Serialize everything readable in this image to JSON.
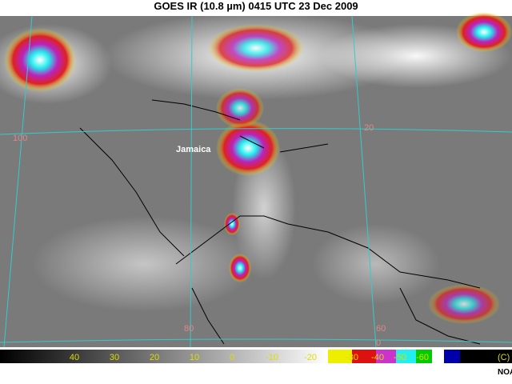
{
  "header": {
    "title": "GOES IR (10.8 µm)  0415 UTC 23 Dec 2009"
  },
  "map": {
    "place_labels": [
      "Jamaica"
    ],
    "grid_labels": [
      "20",
      "100",
      "80",
      "60",
      "0"
    ]
  },
  "colorbar": {
    "labels": [
      "40",
      "30",
      "20",
      "10",
      "0",
      "-10",
      "-20",
      "-30",
      "-40",
      "-50",
      "-60"
    ],
    "unit": "(C)"
  },
  "credit": "NOAA"
}
